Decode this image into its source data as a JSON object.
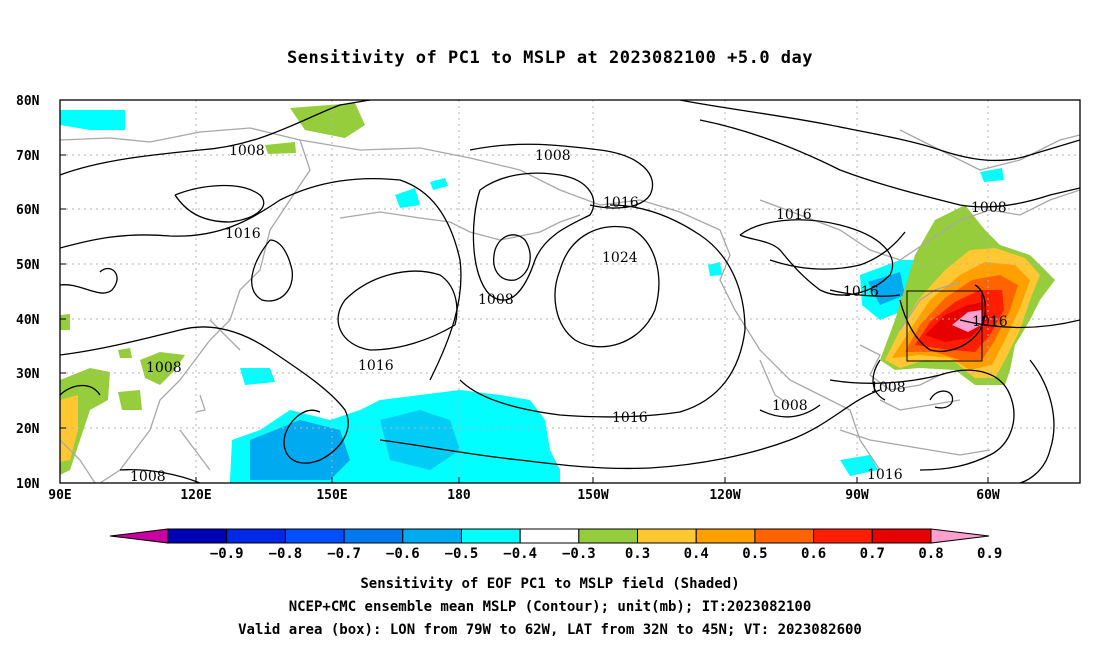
{
  "title": "Sensitivity of PC1 to MSLP at 2023082100 +5.0 day",
  "axes": {
    "lat_labels": [
      "80N",
      "70N",
      "60N",
      "50N",
      "40N",
      "30N",
      "20N",
      "10N"
    ],
    "lon_labels": [
      "90E",
      "120E",
      "150E",
      "180",
      "150W",
      "120W",
      "90W",
      "60W"
    ]
  },
  "contour_labels": [
    "1008",
    "1008",
    "1016",
    "1016",
    "1008",
    "1016",
    "1024",
    "1016",
    "1016",
    "1016",
    "1008",
    "1008",
    "1008",
    "1008",
    "1016",
    "1016",
    "1008"
  ],
  "colorbar": {
    "labels": [
      "-0.9",
      "-0.8",
      "-0.7",
      "-0.6",
      "-0.5",
      "-0.4",
      "-0.3",
      "0.3",
      "0.4",
      "0.5",
      "0.6",
      "0.7",
      "0.8",
      "0.9"
    ],
    "colors": [
      "#0000b4",
      "#0028e6",
      "#0050ff",
      "#0078f0",
      "#00aaf0",
      "#00ffff",
      "#ffffff",
      "#96cd3c",
      "#ffc832",
      "#ffa000",
      "#ff6400",
      "#ff1e00",
      "#e60000"
    ],
    "low_end_color": "#c800a0",
    "high_end_color": "#ffa0d0"
  },
  "valid_box": {
    "lon_west": -79,
    "lon_east": -62,
    "lat_south": 32,
    "lat_north": 45
  },
  "captions": {
    "line1": "Sensitivity of EOF PC1 to MSLP field (Shaded)",
    "line2": "NCEP+CMC ensemble mean MSLP (Contour); unit(mb); IT:2023082100",
    "line3": "Valid area (box): LON from 79W to 62W, LAT from 32N to 45N; VT: 2023082600"
  }
}
